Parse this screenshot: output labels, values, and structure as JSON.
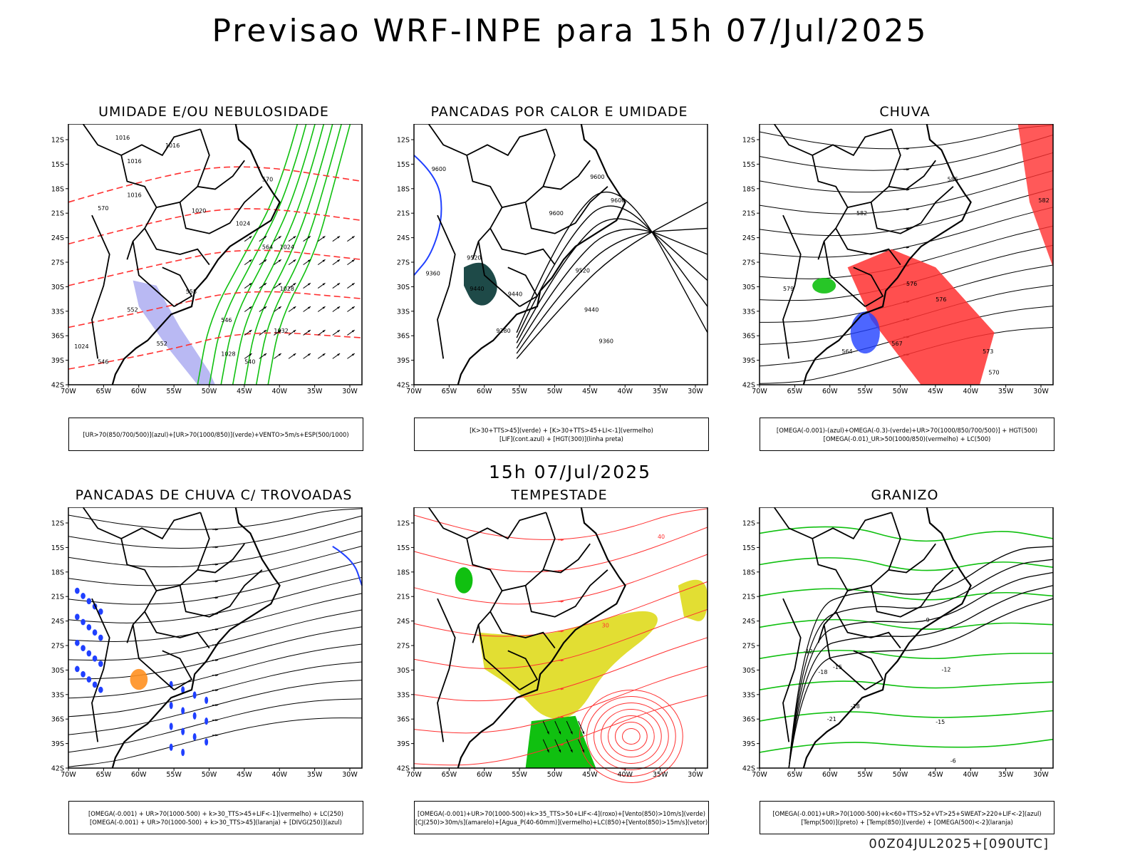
{
  "header": {
    "title": "Previsao WRF-INPE  para 15h 07/Jul/2025",
    "mid_label": "15h 07/Jul/2025",
    "footer": "00Z04JUL2025+[090UTC]"
  },
  "axes": {
    "lat_labels": [
      "12S",
      "15S",
      "18S",
      "21S",
      "24S",
      "27S",
      "30S",
      "33S",
      "36S",
      "39S",
      "42S"
    ],
    "lon_labels": [
      "70W",
      "65W",
      "60W",
      "55W",
      "50W",
      "45W",
      "40W",
      "35W",
      "30W"
    ]
  },
  "panels": [
    {
      "title": "UMIDADE E/OU NEBULOSIDADE",
      "legend": [
        "[UR>70(850/700/500)](azul)+[UR>70(1000/850)](verde)+VENTO>5m/s+ESP(500/1000)"
      ],
      "contour_labels": [
        "1016",
        "1016",
        "1016",
        "1016",
        "1020",
        "1024",
        "1024",
        "1028",
        "1032",
        "1028",
        "1024",
        "570",
        "570",
        "564",
        "558",
        "552",
        "546",
        "552",
        "546",
        "540"
      ]
    },
    {
      "title": "PANCADAS POR CALOR E UMIDADE",
      "legend": [
        "[K>30+TTS>45](verde) + [K>30+TTS>45+LI<-1](vermelho)",
        "[LIF](cont.azul) + [HGT(300)](linha preta)"
      ],
      "contour_labels": [
        "9600",
        "9600",
        "9600",
        "9600",
        "9520",
        "9520",
        "9440",
        "9440",
        "9440",
        "9360",
        "9360",
        "9280"
      ]
    },
    {
      "title": "CHUVA",
      "legend": [
        "[OMEGA(-0.001)-(azul)+OMEGA(-0.3)-(verde)+UR>70(1000/850/700/500)] + HGT(500)",
        "[OMEGA(-0.01)_UR>50(1000/850)(vermelho) + LC(500)"
      ],
      "contour_labels": [
        "585",
        "582",
        "582",
        "579",
        "576",
        "576",
        "573",
        "570",
        "567",
        "564"
      ]
    },
    {
      "title": "PANCADAS DE CHUVA C/ TROVOADAS",
      "legend": [
        "[OMEGA(-0.001) + UR>70(1000-500) + k>30_TTS>45+LIF<-1](vermelho) + LC(250)",
        "[OMEGA(-0.001) + UR>70(1000-500) + k>30_TTS>45](laranja) + [DIVG(250)](azul)"
      ],
      "contour_labels": []
    },
    {
      "title": "TEMPESTADE",
      "legend": [
        "[OMEGA(-0.001)+UR>70(1000-500)+k>35_TTS>50+LIF<-4](roxo)+[Vento(850)>10m/s](verde)",
        "[CJ(250)>30m/s](amarelo)+[Agua_P(40-60mm)](vermelho)+LC(850)+[Vento(850)>15m/s](vetor)"
      ],
      "contour_labels": [
        "40",
        "30"
      ]
    },
    {
      "title": "GRANIZO",
      "legend": [
        "[OMEGA(-0.001)+UR>70(1000-500)+k<60+TTS>52+VT>25+SWEAT>220+LIF<-2](azul)",
        "[Temp(500)](preto) + [Temp(850)](verde) + [OMEGA(500)<-2](laranja)"
      ],
      "contour_labels": [
        "-9",
        "-12",
        "-12",
        "-15",
        "-18",
        "-18",
        "-21",
        "-15",
        "-6"
      ]
    }
  ],
  "colors": {
    "frame": "#000000",
    "contour_red": "#ff3030",
    "contour_green": "#10c010",
    "blue": "#2040ff",
    "yellow": "#e0dc28",
    "lavender": "#a8a8f0",
    "orange": "#ff9020",
    "dark_teal": "#1e4a48"
  }
}
